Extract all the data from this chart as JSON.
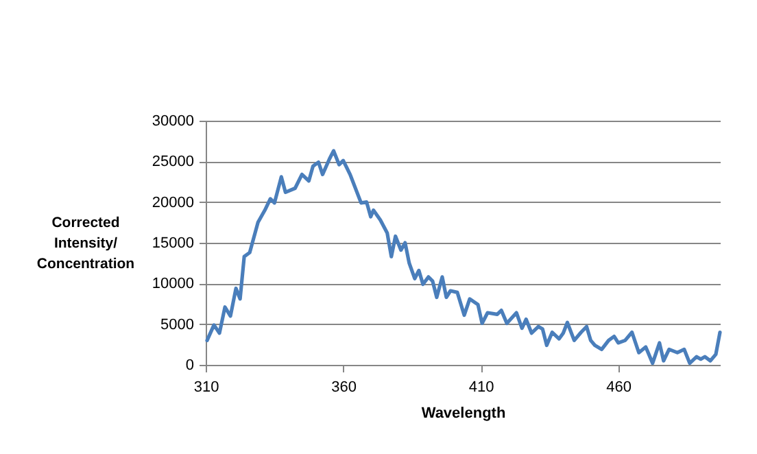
{
  "chart_data": {
    "type": "line",
    "xlabel": "Wavelength",
    "ylabel": "Corrected Intensity/ Concentration",
    "x": [
      310.5,
      313,
      315,
      317,
      319,
      321,
      322.5,
      324,
      326,
      329,
      331.5,
      333.5,
      335,
      337.5,
      339,
      342.5,
      345,
      347.5,
      349,
      351,
      352.5,
      355,
      356.5,
      358.5,
      360,
      362.5,
      366.5,
      368.5,
      370,
      371,
      373.5,
      376,
      377.5,
      379,
      381,
      382.5,
      384,
      386,
      387.5,
      389,
      391,
      392.5,
      394,
      396,
      397.5,
      399,
      401.5,
      404,
      406,
      409,
      410.5,
      412.5,
      416,
      417.5,
      419.5,
      423,
      425,
      426.5,
      428.5,
      431,
      432.5,
      434,
      436,
      438.5,
      440,
      441.5,
      444,
      446.5,
      448.5,
      450,
      451.5,
      454,
      456.5,
      458.5,
      460,
      462.5,
      465,
      467.5,
      470,
      472.5,
      475,
      476.5,
      478.5,
      481.5,
      484,
      486,
      488.5,
      490,
      491.5,
      493.5,
      495.5,
      497
    ],
    "series": [
      {
        "color": "#4a7ebb",
        "values": [
          3000,
          4900,
          3900,
          7100,
          6000,
          9400,
          8100,
          13300,
          13800,
          17500,
          19000,
          20400,
          19900,
          23100,
          21200,
          21700,
          23400,
          22600,
          24400,
          24900,
          23400,
          25300,
          26300,
          24600,
          25100,
          23400,
          19900,
          20000,
          18200,
          19000,
          17800,
          16200,
          13300,
          15800,
          14100,
          15000,
          12500,
          10600,
          11600,
          9900,
          10800,
          10300,
          8300,
          10800,
          8300,
          9100,
          8900,
          6100,
          8100,
          7400,
          5100,
          6400,
          6200,
          6700,
          5100,
          6400,
          4500,
          5600,
          3900,
          4700,
          4400,
          2400,
          4000,
          3200,
          3900,
          5200,
          3000,
          4000,
          4700,
          3000,
          2400,
          1900,
          3000,
          3500,
          2700,
          3000,
          4000,
          1500,
          2200,
          200,
          2700,
          500,
          1900,
          1500,
          1900,
          200,
          1000,
          700,
          1000,
          500,
          1300,
          4000
        ]
      }
    ],
    "xlim": [
      310,
      497
    ],
    "xticks": [
      310,
      360,
      410,
      460
    ],
    "ylim": [
      0,
      30000
    ],
    "yticks": [
      0,
      5000,
      10000,
      15000,
      20000,
      25000,
      30000
    ],
    "grid": "y",
    "legend": false,
    "marker": "none",
    "line_style": "solid"
  }
}
